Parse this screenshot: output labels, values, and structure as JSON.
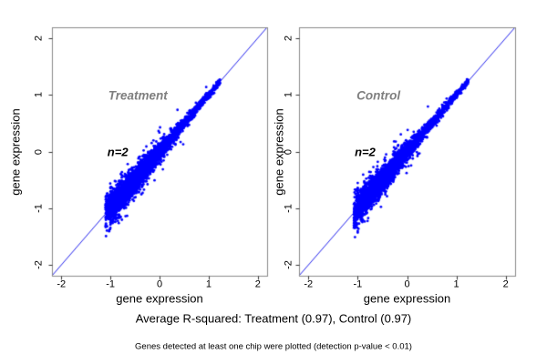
{
  "figure": {
    "background": "#ffffff",
    "captions": {
      "r_squared": "Average R-squared: Treatment (0.97), Control (0.97)",
      "footnote": "Genes detected at least one chip were plotted (detection p-value < 0.01)"
    }
  },
  "colors": {
    "points": "#0000ff",
    "identity_line": "#2222ee",
    "box_border": "#8a8a8a",
    "tick_mark": "#333333",
    "panel_label": "#7f7f7f",
    "text": "#000000"
  },
  "chart_data": [
    {
      "type": "scatter",
      "panel_label": "Treatment",
      "xlabel": "gene expression",
      "ylabel": "gene expression",
      "xlim": [
        -2.19,
        2.19
      ],
      "ylim": [
        -2.19,
        2.19
      ],
      "xticks": [
        -2,
        -1,
        0,
        1,
        2
      ],
      "yticks": [
        -2,
        -1,
        0,
        1,
        2
      ],
      "grid": false,
      "legend": "none",
      "identity_line": {
        "from": [
          -2.19,
          -2.19
        ],
        "to": [
          2.19,
          2.19
        ]
      },
      "annotation": {
        "text": "n=2",
        "x": -0.85,
        "y": 0.0
      },
      "panel_label_pos": {
        "x": -0.44,
        "y": 0.99
      },
      "r_squared": 0.97,
      "point_cloud": {
        "description": "Replicate chip1-vs-chip2 expression values hugging the y=x identity line from (-1.1,-1.1) to (1.24,1.24); dense wide blob at lower-left narrowing to a thin tip at upper-right",
        "seed": 1013,
        "n_points": 3200,
        "t_mean": -0.5,
        "t_sd": 0.42,
        "uniform_fraction": 0.28,
        "t_min": -1.1,
        "t_max": 1.24,
        "sigma_near": 0.16,
        "sigma_far": 0.025,
        "sigma_power": 1.3,
        "n_outliers": 60,
        "outlier_min": 0.12,
        "outlier_max": 0.42,
        "marker_radius": 1.4
      }
    },
    {
      "type": "scatter",
      "panel_label": "Control",
      "xlabel": "gene expression",
      "ylabel": "gene expression",
      "xlim": [
        -2.19,
        2.19
      ],
      "ylim": [
        -2.19,
        2.19
      ],
      "xticks": [
        -2,
        -1,
        0,
        1,
        2
      ],
      "yticks": [
        -2,
        -1,
        0,
        1,
        2
      ],
      "grid": false,
      "legend": "none",
      "identity_line": {
        "from": [
          -2.19,
          -2.19
        ],
        "to": [
          2.19,
          2.19
        ]
      },
      "annotation": {
        "text": "n=2",
        "x": -0.85,
        "y": 0.0
      },
      "panel_label_pos": {
        "x": -0.58,
        "y": 0.99
      },
      "r_squared": 0.97,
      "point_cloud": {
        "description": "Replicate chip1-vs-chip2 expression values hugging the y=x identity line from (-1.1,-1.1) to (1.24,1.24); dense wide blob at lower-left narrowing to a thin tip at upper-right",
        "seed": 2027,
        "n_points": 3200,
        "t_mean": -0.52,
        "t_sd": 0.4,
        "uniform_fraction": 0.28,
        "t_min": -1.08,
        "t_max": 1.24,
        "sigma_near": 0.15,
        "sigma_far": 0.025,
        "sigma_power": 1.3,
        "n_outliers": 55,
        "outlier_min": 0.12,
        "outlier_max": 0.45,
        "marker_radius": 1.4
      }
    }
  ]
}
